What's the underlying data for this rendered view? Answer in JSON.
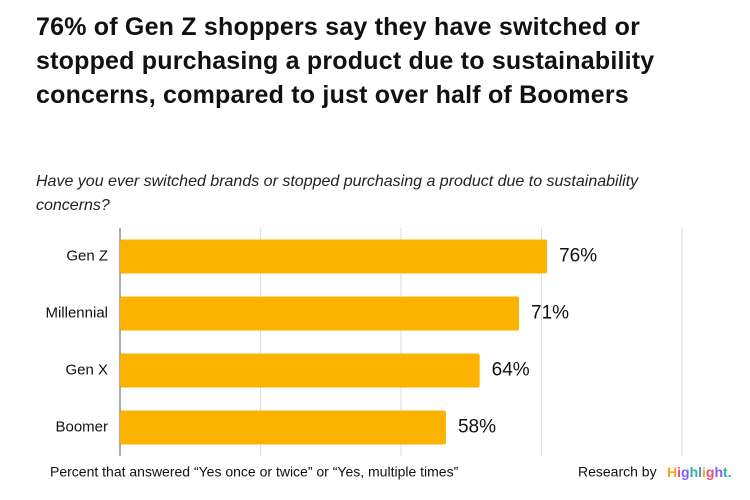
{
  "chart_data": {
    "type": "bar",
    "orientation": "horizontal",
    "title": "76% of Gen Z shoppers say they have switched or stopped purchasing a product due to sustainability concerns, compared to just over half of Boomers",
    "subtitle": "Have you ever switched brands or stopped purchasing a product due to sustainability concerns?",
    "categories": [
      "Gen Z",
      "Millennial",
      "Gen X",
      "Boomer"
    ],
    "values": [
      76,
      71,
      64,
      58
    ],
    "value_labels": [
      "76%",
      "71%",
      "64%",
      "58%"
    ],
    "color": "#fbb300",
    "xlim": [
      0,
      100
    ],
    "xticks": [
      0,
      25,
      50,
      75,
      100
    ],
    "grid": true,
    "note": "Percent that answered “Yes once or twice” or “Yes, multiple times”",
    "source": "Research by",
    "brand": "Highlight."
  }
}
